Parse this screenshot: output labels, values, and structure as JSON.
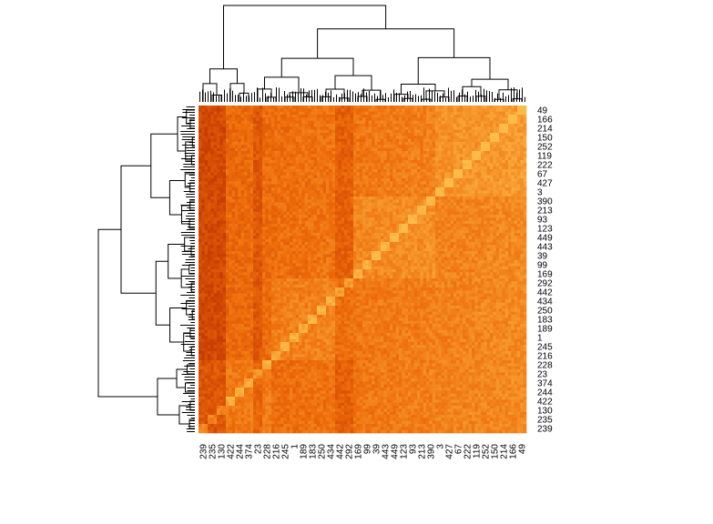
{
  "chart_data": {
    "type": "heatmap",
    "title": "",
    "xlabel": "",
    "ylabel": "",
    "grid": false,
    "legend": "none",
    "dendrograms": {
      "rows": "left",
      "columns": "top"
    },
    "color_scale": {
      "low": "#b82a00",
      "mid": "#ee6c0a",
      "high": "#fcbc4a"
    },
    "column_tick_labels": [
      "239",
      "235",
      "130",
      "422",
      "244",
      "374",
      "23",
      "228",
      "216",
      "245",
      "1",
      "189",
      "183",
      "250",
      "434",
      "442",
      "292",
      "169",
      "99",
      "39",
      "443",
      "449",
      "123",
      "93",
      "213",
      "390",
      "3",
      "427",
      "67",
      "222",
      "119",
      "252",
      "150",
      "214",
      "166",
      "49"
    ],
    "row_tick_labels": [
      "49",
      "166",
      "214",
      "150",
      "252",
      "119",
      "222",
      "67",
      "427",
      "3",
      "390",
      "213",
      "93",
      "123",
      "449",
      "443",
      "39",
      "99",
      "169",
      "292",
      "442",
      "434",
      "250",
      "183",
      "189",
      "1",
      "245",
      "216",
      "228",
      "23",
      "374",
      "244",
      "422",
      "130",
      "235",
      "239"
    ]
  }
}
